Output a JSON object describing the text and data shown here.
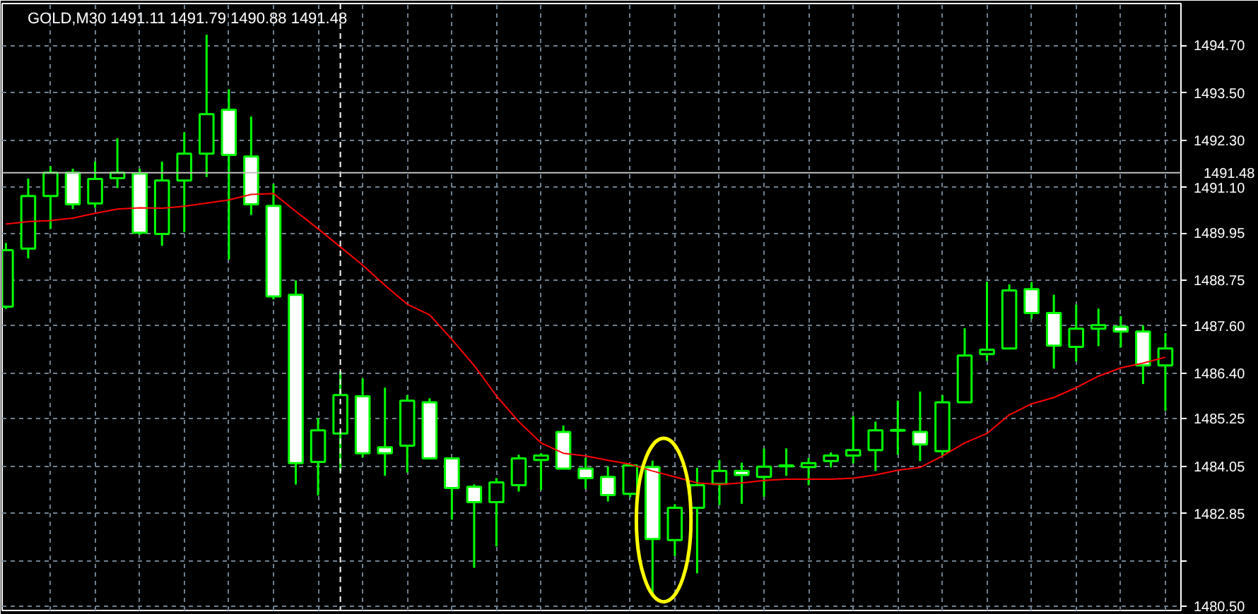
{
  "chart_data": {
    "type": "candlestick",
    "title": "GOLD,M30  1491.11 1491.79 1490.88 1491.48",
    "categories": [
      null,
      null,
      null,
      null,
      null,
      null,
      null,
      null,
      null,
      null,
      null,
      null,
      null,
      null,
      null,
      null,
      null,
      null,
      null,
      null,
      null,
      null,
      null,
      null,
      null,
      null,
      null,
      null,
      null,
      null,
      null,
      null,
      null,
      null,
      null,
      null,
      null,
      null,
      null,
      null,
      null,
      null,
      null,
      null,
      null,
      null,
      null,
      null,
      null,
      null,
      null,
      null,
      null
    ],
    "color": "#00ff00",
    "ohlc": [
      [
        1488.09,
        1489.7,
        1488.03,
        1489.52
      ],
      [
        1489.56,
        1491.33,
        1489.31,
        1490.89
      ],
      [
        1490.89,
        1491.64,
        1490.06,
        1491.48
      ],
      [
        1491.48,
        1491.58,
        1490.56,
        1490.68
      ],
      [
        1490.7,
        1491.76,
        1490.59,
        1491.32
      ],
      [
        1491.34,
        1492.35,
        1491.09,
        1491.48
      ],
      [
        1491.46,
        1491.58,
        1489.91,
        1489.96
      ],
      [
        1489.93,
        1491.76,
        1489.63,
        1491.28
      ],
      [
        1491.28,
        1492.5,
        1489.97,
        1491.96
      ],
      [
        1491.96,
        1494.97,
        1491.37,
        1492.96
      ],
      [
        1493.07,
        1493.59,
        1489.28,
        1491.93
      ],
      [
        1491.89,
        1492.9,
        1490.41,
        1490.68
      ],
      [
        1490.64,
        1491.19,
        1488.27,
        1488.35
      ],
      [
        1488.39,
        1488.75,
        1483.59,
        1484.13
      ],
      [
        1484.16,
        1485.27,
        1483.31,
        1484.96
      ],
      [
        1484.88,
        1486.45,
        1483.93,
        1485.85
      ],
      [
        1485.82,
        1486.27,
        1484.28,
        1484.38
      ],
      [
        1484.53,
        1486.04,
        1483.81,
        1484.38
      ],
      [
        1484.57,
        1485.85,
        1483.89,
        1485.71
      ],
      [
        1485.67,
        1485.77,
        1484.22,
        1484.25
      ],
      [
        1484.25,
        1484.25,
        1482.7,
        1483.5
      ],
      [
        1483.53,
        1483.59,
        1481.48,
        1483.14
      ],
      [
        1483.14,
        1483.75,
        1482.02,
        1483.64
      ],
      [
        1483.57,
        1484.34,
        1483.41,
        1484.25
      ],
      [
        1484.21,
        1484.38,
        1483.45,
        1484.32
      ],
      [
        1484.92,
        1485.08,
        1483.97,
        1483.99
      ],
      [
        1483.99,
        1484.26,
        1483.48,
        1483.75
      ],
      [
        1483.78,
        1484.04,
        1483.16,
        1483.32
      ],
      [
        1483.35,
        1484.07,
        1483.27,
        1484.07
      ],
      [
        1484.03,
        1484.19,
        1480.83,
        1482.21
      ],
      [
        1482.18,
        1483.09,
        1481.78,
        1483.0
      ],
      [
        1483.0,
        1484.01,
        1481.34,
        1483.57
      ],
      [
        1483.6,
        1484.21,
        1483.07,
        1483.93
      ],
      [
        1483.93,
        1484.14,
        1483.1,
        1483.83
      ],
      [
        1483.78,
        1484.5,
        1483.28,
        1484.04
      ],
      [
        1484.05,
        1484.5,
        1483.81,
        1484.07
      ],
      [
        1484.03,
        1484.26,
        1483.57,
        1484.13
      ],
      [
        1484.18,
        1484.4,
        1484.02,
        1484.32
      ],
      [
        1484.32,
        1485.32,
        1484.12,
        1484.46
      ],
      [
        1484.46,
        1485.18,
        1483.93,
        1484.96
      ],
      [
        1484.95,
        1485.71,
        1484.34,
        1484.97
      ],
      [
        1484.92,
        1485.94,
        1484.18,
        1484.6
      ],
      [
        1484.43,
        1485.85,
        1484.32,
        1485.67
      ],
      [
        1485.67,
        1487.54,
        1485.65,
        1486.85
      ],
      [
        1486.89,
        1488.72,
        1486.72,
        1487.0
      ],
      [
        1487.03,
        1488.65,
        1487.01,
        1488.5
      ],
      [
        1488.53,
        1488.71,
        1487.78,
        1487.93
      ],
      [
        1487.93,
        1488.39,
        1486.52,
        1487.1
      ],
      [
        1487.07,
        1488.14,
        1486.7,
        1487.53
      ],
      [
        1487.53,
        1488.04,
        1487.09,
        1487.62
      ],
      [
        1487.58,
        1487.85,
        1487.06,
        1487.46
      ],
      [
        1487.46,
        1487.62,
        1486.13,
        1486.6
      ],
      [
        1486.6,
        1487.42,
        1485.45,
        1487.03
      ]
    ],
    "colors": [
      "#000000",
      "#000000",
      "#000000",
      "#ffffff",
      "#000000",
      "#000000",
      "#ffffff",
      "#000000",
      "#000000",
      "#000000",
      "#ffffff",
      "#ffffff",
      "#ffffff",
      "#ffffff",
      "#000000",
      "#000000",
      "#ffffff",
      "#ffffff",
      "#000000",
      "#ffffff",
      "#ffffff",
      "#ffffff",
      "#000000",
      "#000000",
      "#000000",
      "#ffffff",
      "#ffffff",
      "#ffffff",
      "#000000",
      "#ffffff",
      "#000000",
      "#000000",
      "#000000",
      "#ffffff",
      "#000000",
      "#000000",
      "#000000",
      "#000000",
      "#000000",
      "#000000",
      "#000000",
      "#ffffff",
      "#000000",
      "#000000",
      "#000000",
      "#000000",
      "#ffffff",
      "#ffffff",
      "#000000",
      "#000000",
      "#ffffff",
      "#ffffff",
      "#000000"
    ],
    "series": [
      {
        "type": "line",
        "color": "#ff0000",
        "values": [
          1490.18,
          1490.24,
          1490.27,
          1490.33,
          1490.45,
          1490.56,
          1490.59,
          1490.58,
          1490.63,
          1490.71,
          1490.79,
          1490.93,
          1490.95,
          1490.5,
          1490.06,
          1489.6,
          1489.14,
          1488.63,
          1488.15,
          1487.88,
          1487.26,
          1486.6,
          1485.83,
          1485.18,
          1484.64,
          1484.38,
          1484.31,
          1484.2,
          1484.1,
          1483.93,
          1483.78,
          1483.63,
          1483.59,
          1483.63,
          1483.69,
          1483.72,
          1483.72,
          1483.72,
          1483.75,
          1483.83,
          1483.95,
          1484.02,
          1484.31,
          1484.64,
          1484.88,
          1485.35,
          1485.63,
          1485.79,
          1486.04,
          1486.33,
          1486.54,
          1486.66,
          1486.81
        ]
      }
    ],
    "ylim": [
      1480.4,
      1495.76
    ],
    "yticks": [
      {
        "value": 1480.5,
        "label": "1480.50"
      },
      {
        "value": 1481.65,
        "label": null
      },
      1482.85,
      1484.05,
      1485.25,
      {
        "value": 1486.4,
        "label": "1486.40"
      },
      {
        "value": 1487.6,
        "label": "1487.60"
      },
      1488.75,
      1489.95,
      {
        "value": 1491.1,
        "label": "1491.10"
      },
      {
        "value": 1492.3,
        "label": "1492.30"
      },
      {
        "value": 1493.5,
        "label": "1493.50"
      },
      {
        "value": 1494.7,
        "label": "1494.70"
      }
    ],
    "grid": true,
    "tick_labels": "y",
    "ref_lines": [
      {
        "axis": "y",
        "value": 1491.48,
        "label": "1491.48",
        "color": "#c0c0c0"
      }
    ]
  }
}
